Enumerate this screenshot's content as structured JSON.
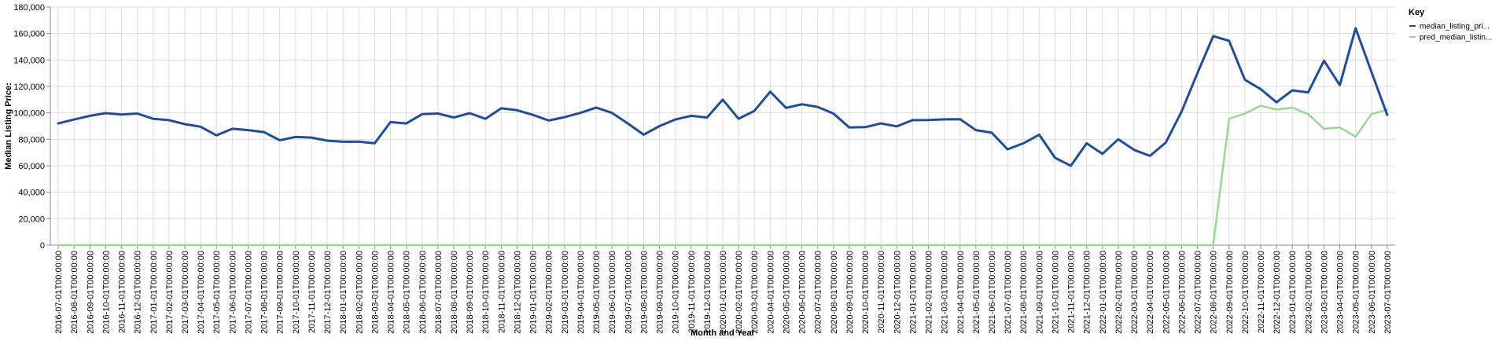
{
  "chart_data": {
    "type": "line",
    "xlabel": "Month and Year",
    "ylabel": "Median Listing Price:",
    "ylim": [
      0,
      180000
    ],
    "y_ticks": [
      "0",
      "20,000",
      "40,000",
      "60,000",
      "80,000",
      "100,000",
      "120,000",
      "140,000",
      "160,000",
      "180,000"
    ],
    "grid": true,
    "legend": {
      "title": "Key",
      "placement": "top-right"
    },
    "x": [
      "2016-07-01T00:00:00",
      "2016-08-01T00:00:00",
      "2016-09-01T00:00:00",
      "2016-10-01T00:00:00",
      "2016-11-01T00:00:00",
      "2016-12-01T00:00:00",
      "2017-01-01T00:00:00",
      "2017-02-01T00:00:00",
      "2017-03-01T00:00:00",
      "2017-04-01T00:00:00",
      "2017-05-01T00:00:00",
      "2017-06-01T00:00:00",
      "2017-07-01T00:00:00",
      "2017-08-01T00:00:00",
      "2017-09-01T00:00:00",
      "2017-10-01T00:00:00",
      "2017-11-01T00:00:00",
      "2017-12-01T00:00:00",
      "2018-01-01T00:00:00",
      "2018-02-01T00:00:00",
      "2018-03-01T00:00:00",
      "2018-04-01T00:00:00",
      "2018-05-01T00:00:00",
      "2018-06-01T00:00:00",
      "2018-07-01T00:00:00",
      "2018-08-01T00:00:00",
      "2018-09-01T00:00:00",
      "2018-10-01T00:00:00",
      "2018-11-01T00:00:00",
      "2018-12-01T00:00:00",
      "2019-01-01T00:00:00",
      "2019-02-01T00:00:00",
      "2019-03-01T00:00:00",
      "2019-04-01T00:00:00",
      "2019-05-01T00:00:00",
      "2019-06-01T00:00:00",
      "2019-07-01T00:00:00",
      "2019-08-01T00:00:00",
      "2019-09-01T00:00:00",
      "2019-10-01T00:00:00",
      "2019-11-01T00:00:00",
      "2019-12-01T00:00:00",
      "2020-01-01T00:00:00",
      "2020-02-01T00:00:00",
      "2020-03-01T00:00:00",
      "2020-04-01T00:00:00",
      "2020-05-01T00:00:00",
      "2020-06-01T00:00:00",
      "2020-07-01T00:00:00",
      "2020-08-01T00:00:00",
      "2020-09-01T00:00:00",
      "2020-10-01T00:00:00",
      "2020-11-01T00:00:00",
      "2020-12-01T00:00:00",
      "2021-01-01T00:00:00",
      "2021-02-01T00:00:00",
      "2021-03-01T00:00:00",
      "2021-04-01T00:00:00",
      "2021-05-01T00:00:00",
      "2021-06-01T00:00:00",
      "2021-07-01T00:00:00",
      "2021-08-01T00:00:00",
      "2021-09-01T00:00:00",
      "2021-10-01T00:00:00",
      "2021-11-01T00:00:00",
      "2021-12-01T00:00:00",
      "2022-01-01T00:00:00",
      "2022-02-01T00:00:00",
      "2022-03-01T00:00:00",
      "2022-04-01T00:00:00",
      "2022-05-01T00:00:00",
      "2022-06-01T00:00:00",
      "2022-07-01T00:00:00",
      "2022-08-01T00:00:00",
      "2022-09-01T00:00:00",
      "2022-10-01T00:00:00",
      "2022-11-01T00:00:00",
      "2022-12-01T00:00:00",
      "2023-01-01T00:00:00",
      "2023-02-01T00:00:00",
      "2023-03-01T00:00:00",
      "2023-04-01T00:00:00",
      "2023-05-01T00:00:00",
      "2023-06-01T00:00:00",
      "2023-07-01T00:00:00"
    ],
    "series": [
      {
        "name": "median_listing_pri...",
        "color": "#1f4e96",
        "values": [
          92000,
          95000,
          97800,
          99800,
          98800,
          99500,
          95500,
          94500,
          91500,
          89500,
          83000,
          88000,
          87000,
          85500,
          79300,
          81800,
          81300,
          79000,
          78200,
          78300,
          77000,
          93000,
          92000,
          99000,
          99500,
          96500,
          99800,
          95500,
          103500,
          102000,
          98500,
          94200,
          96800,
          100000,
          104000,
          100000,
          92000,
          83500,
          90000,
          95000,
          97800,
          96500,
          110000,
          95500,
          101500,
          116000,
          103800,
          106500,
          104500,
          99500,
          89000,
          89200,
          92000,
          89800,
          94500,
          94600,
          95100,
          95200,
          87000,
          85000,
          72500,
          77000,
          83500,
          66000,
          60000,
          77000,
          69000,
          80000,
          72000,
          67500,
          77500,
          101000,
          130000,
          158000,
          154500,
          125000,
          118000,
          108000,
          117000,
          115500,
          139500,
          121000,
          164000,
          131000,
          98500
        ]
      },
      {
        "name": "pred_median_listin...",
        "color": "#9ad694",
        "values": [
          0,
          0,
          0,
          0,
          0,
          0,
          0,
          0,
          0,
          0,
          0,
          0,
          0,
          0,
          0,
          0,
          0,
          0,
          0,
          0,
          0,
          0,
          0,
          0,
          0,
          0,
          0,
          0,
          0,
          0,
          0,
          0,
          0,
          0,
          0,
          0,
          0,
          0,
          0,
          0,
          0,
          0,
          0,
          0,
          0,
          0,
          0,
          0,
          0,
          0,
          0,
          0,
          0,
          0,
          0,
          0,
          0,
          0,
          0,
          0,
          0,
          0,
          0,
          0,
          0,
          0,
          0,
          0,
          0,
          0,
          0,
          0,
          0,
          0,
          95500,
          99500,
          105500,
          102500,
          104000,
          99000,
          88000,
          89000,
          82000,
          99000,
          102500
        ]
      }
    ]
  }
}
